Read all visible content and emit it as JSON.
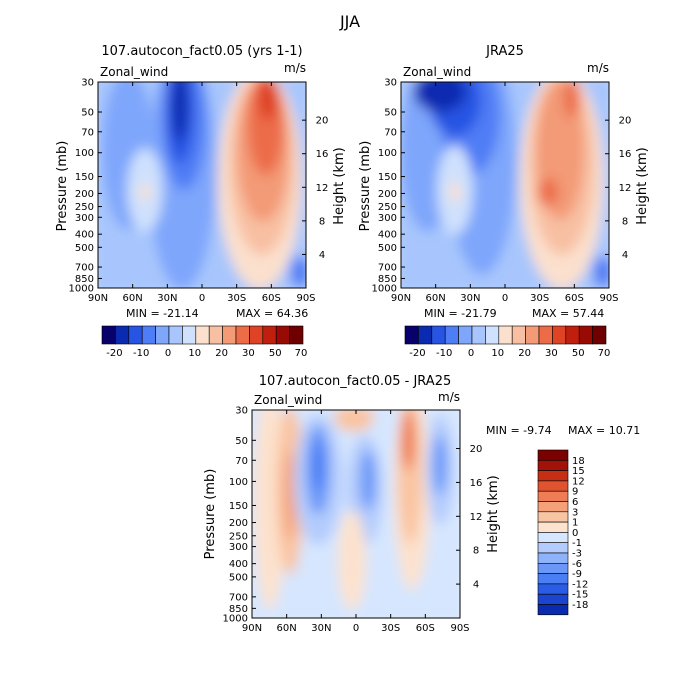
{
  "suptitle": "JJA",
  "colors": {
    "scale_a": [
      "#08006b",
      "#0a2bb0",
      "#2754e3",
      "#4f7df5",
      "#7ea6fb",
      "#a8c6fd",
      "#cfe1fd",
      "#fbe0cd",
      "#f8c0a3",
      "#f39a76",
      "#ec6c48",
      "#de4325",
      "#c01f0e",
      "#990a05",
      "#6e0000"
    ],
    "scale_diff": [
      "#0a2bb0",
      "#1c45cf",
      "#2b5ce6",
      "#4a7ef5",
      "#6b98f8",
      "#8fb3fb",
      "#b4ccfd",
      "#d6e6fe",
      "#fde2cd",
      "#f9c4a2",
      "#f4a079",
      "#ee7c55",
      "#e0532f",
      "#c72f14",
      "#a21208",
      "#7b0000"
    ]
  },
  "chart_data": [
    {
      "type": "heatmap",
      "title": "107.autocon_fact0.05 (yrs 1-1)",
      "variable_label": "Zonal_wind",
      "units_label": "m/s",
      "ylabel": "Pressure (mb)",
      "ylabel_right": "Height (km)",
      "x_ticks": [
        "90N",
        "60N",
        "30N",
        "0",
        "30S",
        "60S",
        "90S"
      ],
      "xlim": [
        90,
        -90
      ],
      "y_ticks": [
        "30",
        "50",
        "70",
        "100",
        "150",
        "200",
        "250",
        "300",
        "400",
        "500",
        "700",
        "850",
        "1000"
      ],
      "y_tick_values": [
        30,
        50,
        70,
        100,
        150,
        200,
        250,
        300,
        400,
        500,
        700,
        850,
        1000
      ],
      "ylim": [
        1000,
        30
      ],
      "y_scale": "log",
      "height_ticks": [
        "20",
        "16",
        "12",
        "8",
        "4"
      ],
      "height_tick_values": [
        20,
        16,
        12,
        8,
        4
      ],
      "min_text": "MIN = -21.14",
      "max_text": "MAX = 64.36",
      "colorbar_orientation": "horizontal",
      "colorbar_labels": [
        "-20",
        "-10",
        "0",
        "10",
        "20",
        "30",
        "50",
        "70"
      ],
      "grid": false
    },
    {
      "type": "heatmap",
      "title": "JRA25",
      "variable_label": "Zonal_wind",
      "units_label": "m/s",
      "ylabel": "Pressure (mb)",
      "ylabel_right": "Height (km)",
      "x_ticks": [
        "90N",
        "60N",
        "30N",
        "0",
        "30S",
        "60S",
        "90S"
      ],
      "xlim": [
        90,
        -90
      ],
      "y_ticks": [
        "30",
        "50",
        "70",
        "100",
        "150",
        "200",
        "250",
        "300",
        "400",
        "500",
        "700",
        "850",
        "1000"
      ],
      "y_tick_values": [
        30,
        50,
        70,
        100,
        150,
        200,
        250,
        300,
        400,
        500,
        700,
        850,
        1000
      ],
      "ylim": [
        1000,
        30
      ],
      "y_scale": "log",
      "height_ticks": [
        "20",
        "16",
        "12",
        "8",
        "4"
      ],
      "height_tick_values": [
        20,
        16,
        12,
        8,
        4
      ],
      "min_text": "MIN = -21.79",
      "max_text": "MAX = 57.44",
      "colorbar_orientation": "horizontal",
      "colorbar_labels": [
        "-20",
        "-10",
        "0",
        "10",
        "20",
        "30",
        "50",
        "70"
      ],
      "grid": false
    },
    {
      "type": "heatmap",
      "title": "107.autocon_fact0.05 - JRA25",
      "variable_label": "Zonal_wind",
      "units_label": "m/s",
      "ylabel": "Pressure (mb)",
      "ylabel_right": "Height (km)",
      "x_ticks": [
        "90N",
        "60N",
        "30N",
        "0",
        "30S",
        "60S",
        "90S"
      ],
      "xlim": [
        90,
        -90
      ],
      "y_ticks": [
        "30",
        "50",
        "70",
        "100",
        "150",
        "200",
        "250",
        "300",
        "400",
        "500",
        "700",
        "850",
        "1000"
      ],
      "y_tick_values": [
        30,
        50,
        70,
        100,
        150,
        200,
        250,
        300,
        400,
        500,
        700,
        850,
        1000
      ],
      "ylim": [
        1000,
        30
      ],
      "y_scale": "log",
      "height_ticks": [
        "20",
        "16",
        "12",
        "8",
        "4"
      ],
      "height_tick_values": [
        20,
        16,
        12,
        8,
        4
      ],
      "min_text": "MIN =  -9.74",
      "max_text": "MAX =  10.71",
      "colorbar_orientation": "vertical",
      "colorbar_labels": [
        "18",
        "15",
        "12",
        "9",
        "6",
        "3",
        "1",
        "0",
        "-1",
        "-3",
        "-6",
        "-9",
        "-12",
        "-15",
        "-18"
      ],
      "grid": false
    }
  ]
}
